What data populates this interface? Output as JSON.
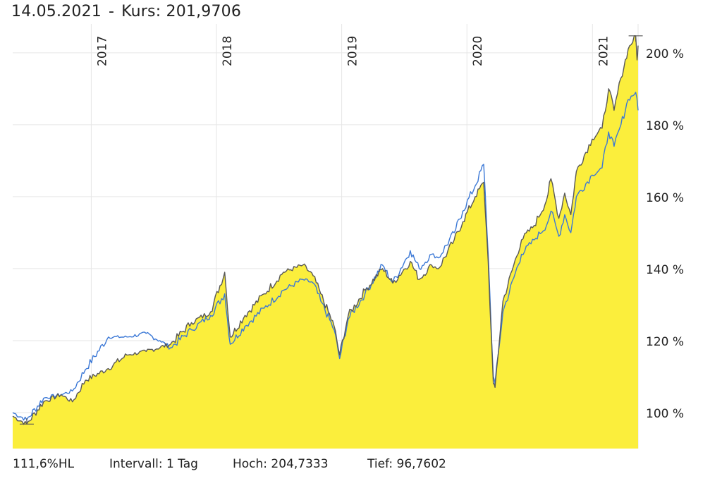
{
  "header": {
    "date": "14.05.2021",
    "separator": "-",
    "price_text": "Kurs: 201,9706"
  },
  "footer": {
    "change": "111,6%HL",
    "interval": "Intervall: 1 Tag",
    "high": "Hoch: 204,7333",
    "low": "Tief: 96,7602"
  },
  "colors": {
    "area_fill": "#fbee3c",
    "main_line": "#585858",
    "compare_line": "#3b78d6",
    "grid": "#e6e6e6",
    "text": "#222222"
  },
  "chart_data": {
    "type": "area",
    "y_unit": "%",
    "ylim": [
      90,
      208
    ],
    "xlim": [
      "2016-05-17",
      "2021-05-14"
    ],
    "y_ticks": [
      {
        "value": 100,
        "label": "100 %"
      },
      {
        "value": 120,
        "label": "120 %"
      },
      {
        "value": 140,
        "label": "140 %"
      },
      {
        "value": 160,
        "label": "160 %"
      },
      {
        "value": 180,
        "label": "180 %"
      },
      {
        "value": 200,
        "label": "200 %"
      }
    ],
    "x_ticks": [
      {
        "date": "2017-01-01",
        "label": "2017"
      },
      {
        "date": "2018-01-01",
        "label": "2018"
      },
      {
        "date": "2019-01-01",
        "label": "2019"
      },
      {
        "date": "2020-01-01",
        "label": "2020"
      },
      {
        "date": "2021-01-01",
        "label": "2021"
      }
    ],
    "grid": true,
    "series": [
      {
        "role": "main",
        "points": [
          [
            "2016-05-17",
            99
          ],
          [
            "2016-06-27",
            96.8
          ],
          [
            "2016-08-15",
            103
          ],
          [
            "2016-10-05",
            105
          ],
          [
            "2016-11-07",
            103
          ],
          [
            "2016-12-15",
            109
          ],
          [
            "2017-02-15",
            112
          ],
          [
            "2017-04-15",
            116
          ],
          [
            "2017-06-10",
            117
          ],
          [
            "2017-08-20",
            119
          ],
          [
            "2017-10-20",
            125
          ],
          [
            "2017-12-15",
            128
          ],
          [
            "2018-01-25",
            139
          ],
          [
            "2018-02-10",
            121
          ],
          [
            "2018-03-25",
            127
          ],
          [
            "2018-05-20",
            133
          ],
          [
            "2018-07-15",
            139
          ],
          [
            "2018-09-10",
            141
          ],
          [
            "2018-10-10",
            138
          ],
          [
            "2018-11-01",
            133
          ],
          [
            "2018-12-10",
            124
          ],
          [
            "2018-12-26",
            116
          ],
          [
            "2019-01-20",
            127
          ],
          [
            "2019-03-10",
            134
          ],
          [
            "2019-04-30",
            140
          ],
          [
            "2019-05-30",
            136
          ],
          [
            "2019-07-20",
            142
          ],
          [
            "2019-08-15",
            137
          ],
          [
            "2019-09-20",
            141
          ],
          [
            "2019-10-10",
            140
          ],
          [
            "2019-11-25",
            148
          ],
          [
            "2019-12-20",
            153
          ],
          [
            "2020-01-25",
            160
          ],
          [
            "2020-02-19",
            164
          ],
          [
            "2020-03-03",
            142
          ],
          [
            "2020-03-18",
            108
          ],
          [
            "2020-03-23",
            107
          ],
          [
            "2020-04-15",
            131
          ],
          [
            "2020-06-08",
            148
          ],
          [
            "2020-07-15",
            152
          ],
          [
            "2020-08-20",
            159
          ],
          [
            "2020-09-02",
            165
          ],
          [
            "2020-09-25",
            154
          ],
          [
            "2020-10-12",
            161
          ],
          [
            "2020-10-30",
            155
          ],
          [
            "2020-11-15",
            167
          ],
          [
            "2020-12-31",
            176
          ],
          [
            "2021-01-29",
            179
          ],
          [
            "2021-02-17",
            190
          ],
          [
            "2021-03-05",
            184
          ],
          [
            "2021-03-25",
            193
          ],
          [
            "2021-04-15",
            201
          ],
          [
            "2021-05-07",
            204.7
          ],
          [
            "2021-05-11",
            198
          ],
          [
            "2021-05-14",
            202
          ]
        ]
      },
      {
        "role": "comparison",
        "points": [
          [
            "2016-05-17",
            100
          ],
          [
            "2016-06-27",
            98
          ],
          [
            "2016-08-15",
            104
          ],
          [
            "2016-10-05",
            105
          ],
          [
            "2016-11-07",
            106
          ],
          [
            "2016-12-15",
            112
          ],
          [
            "2017-02-20",
            121
          ],
          [
            "2017-04-15",
            121
          ],
          [
            "2017-06-10",
            122
          ],
          [
            "2017-07-20",
            120
          ],
          [
            "2017-08-20",
            118
          ],
          [
            "2017-10-20",
            123
          ],
          [
            "2017-12-15",
            127
          ],
          [
            "2018-01-25",
            133
          ],
          [
            "2018-02-10",
            119
          ],
          [
            "2018-03-25",
            124
          ],
          [
            "2018-05-20",
            129
          ],
          [
            "2018-07-15",
            134
          ],
          [
            "2018-09-10",
            137
          ],
          [
            "2018-10-10",
            136
          ],
          [
            "2018-11-01",
            131
          ],
          [
            "2018-12-10",
            123
          ],
          [
            "2018-12-26",
            115
          ],
          [
            "2019-01-20",
            126
          ],
          [
            "2019-03-10",
            133
          ],
          [
            "2019-04-30",
            141
          ],
          [
            "2019-05-30",
            136
          ],
          [
            "2019-07-20",
            145
          ],
          [
            "2019-08-15",
            140
          ],
          [
            "2019-09-20",
            144
          ],
          [
            "2019-10-10",
            143
          ],
          [
            "2019-11-25",
            150
          ],
          [
            "2019-12-20",
            156
          ],
          [
            "2020-01-25",
            163
          ],
          [
            "2020-02-19",
            169
          ],
          [
            "2020-03-03",
            144
          ],
          [
            "2020-03-18",
            110
          ],
          [
            "2020-03-23",
            108
          ],
          [
            "2020-04-15",
            128
          ],
          [
            "2020-06-08",
            144
          ],
          [
            "2020-07-15",
            148
          ],
          [
            "2020-08-20",
            152
          ],
          [
            "2020-09-02",
            156
          ],
          [
            "2020-09-25",
            149
          ],
          [
            "2020-10-12",
            155
          ],
          [
            "2020-10-30",
            150
          ],
          [
            "2020-11-15",
            160
          ],
          [
            "2020-12-31",
            166
          ],
          [
            "2021-01-29",
            168
          ],
          [
            "2021-02-17",
            178
          ],
          [
            "2021-03-05",
            174
          ],
          [
            "2021-03-25",
            180
          ],
          [
            "2021-04-15",
            187
          ],
          [
            "2021-05-07",
            189
          ],
          [
            "2021-05-14",
            184
          ]
        ]
      }
    ]
  }
}
